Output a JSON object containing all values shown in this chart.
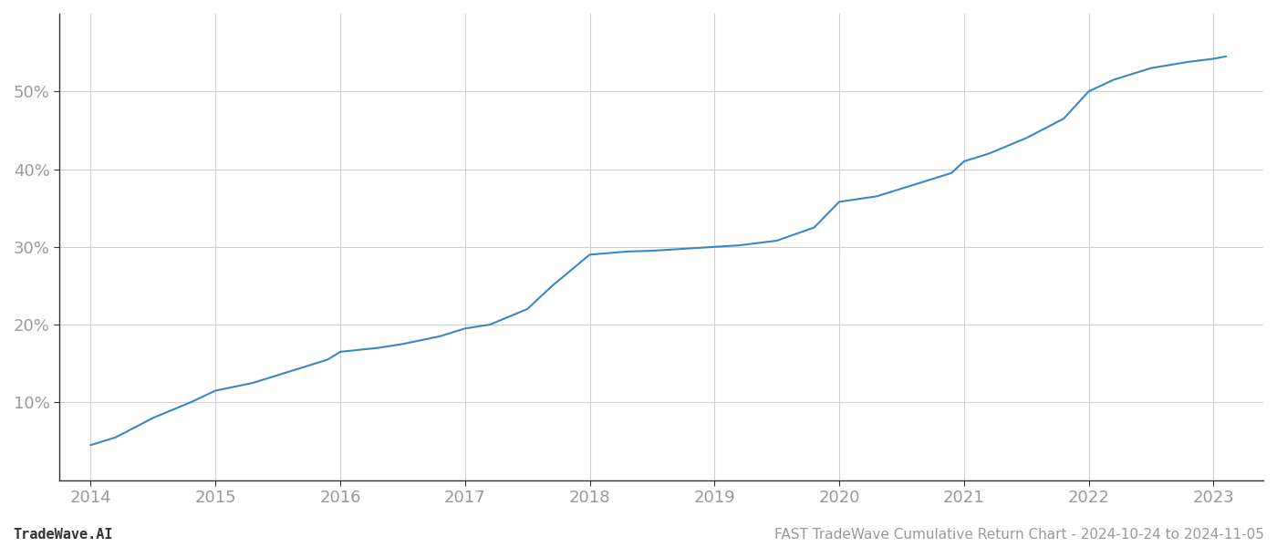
{
  "title": "FAST TradeWave Cumulative Return Chart - 2024-10-24 to 2024-11-05",
  "watermark": "TradeWave.AI",
  "x_values": [
    2014.0,
    2014.2,
    2014.5,
    2014.8,
    2015.0,
    2015.3,
    2015.6,
    2015.9,
    2016.0,
    2016.3,
    2016.5,
    2016.8,
    2017.0,
    2017.2,
    2017.5,
    2017.7,
    2018.0,
    2018.15,
    2018.3,
    2018.5,
    2018.7,
    2019.0,
    2019.2,
    2019.5,
    2019.8,
    2020.0,
    2020.3,
    2020.6,
    2020.9,
    2021.0,
    2021.2,
    2021.5,
    2021.8,
    2022.0,
    2022.2,
    2022.4,
    2022.5,
    2022.8,
    2023.0,
    2023.1
  ],
  "y_values": [
    4.5,
    5.5,
    8.0,
    10.0,
    11.5,
    12.5,
    14.0,
    15.5,
    16.5,
    17.0,
    17.5,
    18.5,
    19.5,
    20.0,
    22.0,
    25.0,
    29.0,
    29.2,
    29.4,
    29.5,
    29.7,
    30.0,
    30.2,
    30.8,
    32.5,
    35.8,
    36.5,
    38.0,
    39.5,
    41.0,
    42.0,
    44.0,
    46.5,
    50.0,
    51.5,
    52.5,
    53.0,
    53.8,
    54.2,
    54.5
  ],
  "line_color": "#3a87c8",
  "line_width": 1.5,
  "background_color": "#ffffff",
  "grid_color": "#d0d0d0",
  "yticks": [
    10,
    20,
    30,
    40,
    50
  ],
  "xticks": [
    2014,
    2015,
    2016,
    2017,
    2018,
    2019,
    2020,
    2021,
    2022,
    2023
  ],
  "xlim": [
    2013.75,
    2023.4
  ],
  "ylim": [
    0,
    60
  ],
  "tick_label_color": "#999999",
  "footer_left": "TradeWave.AI",
  "footer_right": "FAST TradeWave Cumulative Return Chart - 2024-10-24 to 2024-11-05",
  "footer_fontsize": 11,
  "tick_fontsize": 13,
  "spine_color": "#333333"
}
